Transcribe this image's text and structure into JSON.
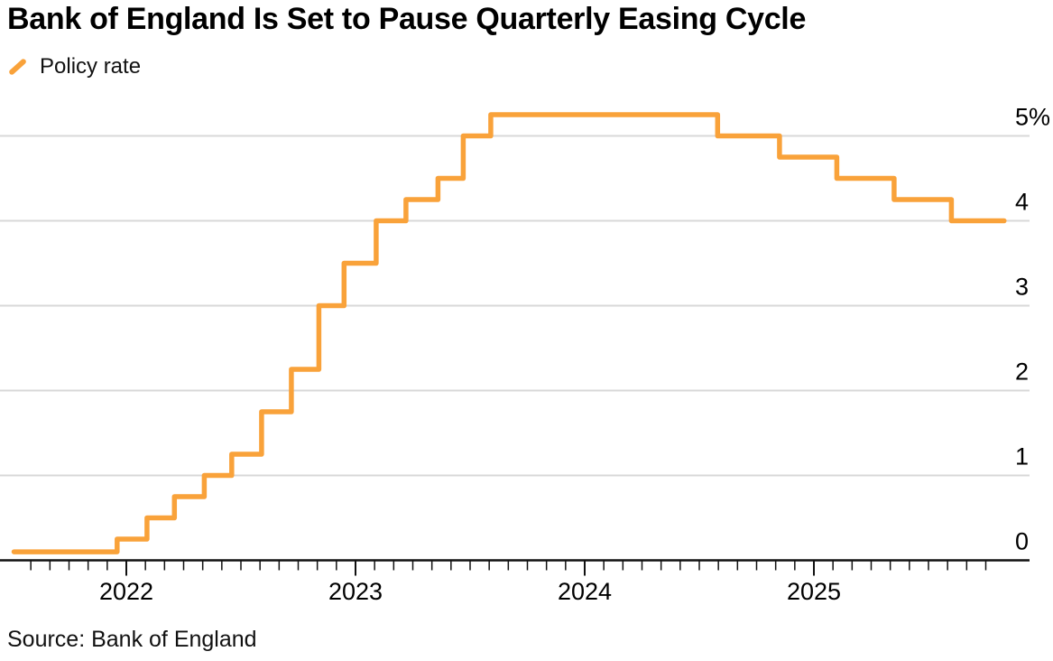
{
  "title": "Bank of England Is Set to Pause Quarterly Easing Cycle",
  "legend": {
    "label": "Policy rate"
  },
  "source": "Source: Bank of England",
  "colors": {
    "line": "#F9A23A",
    "grid": "#D8D8D8",
    "axis": "#111111",
    "text": "#000000"
  },
  "chart_data": {
    "type": "line",
    "subtype": "step",
    "title": "Bank of England Is Set to Pause Quarterly Easing Cycle",
    "xlabel": "",
    "ylabel": "",
    "grid": "horizontal",
    "legend_position": "top-left",
    "x_axis": {
      "year_ticks": [
        2022,
        2023,
        2024,
        2025
      ],
      "year_tick_labels": [
        "2022",
        "2023",
        "2024",
        "2025"
      ],
      "minor_tick": "monthly",
      "domain": [
        2021.45,
        2025.94
      ]
    },
    "y_axis": {
      "side": "right",
      "ticks": [
        0,
        1,
        2,
        3,
        4,
        5
      ],
      "tick_labels": [
        "0",
        "1",
        "2",
        "3",
        "4",
        "5%"
      ],
      "range": [
        0,
        5.6
      ],
      "unit": "%"
    },
    "series": [
      {
        "name": "Policy rate",
        "color": "#F9A23A",
        "step": true,
        "unit": "%",
        "points": [
          [
            2021.51,
            0.1
          ],
          [
            2021.96,
            0.25
          ],
          [
            2022.09,
            0.5
          ],
          [
            2022.21,
            0.75
          ],
          [
            2022.34,
            1.0
          ],
          [
            2022.46,
            1.25
          ],
          [
            2022.59,
            1.75
          ],
          [
            2022.72,
            2.25
          ],
          [
            2022.84,
            3.0
          ],
          [
            2022.95,
            3.5
          ],
          [
            2023.09,
            4.0
          ],
          [
            2023.22,
            4.25
          ],
          [
            2023.36,
            4.5
          ],
          [
            2023.47,
            5.0
          ],
          [
            2023.59,
            5.25
          ],
          [
            2024.58,
            5.0
          ],
          [
            2024.85,
            4.75
          ],
          [
            2025.1,
            4.5
          ],
          [
            2025.35,
            4.25
          ],
          [
            2025.6,
            4.0
          ]
        ],
        "end_x": 2025.83
      }
    ]
  }
}
